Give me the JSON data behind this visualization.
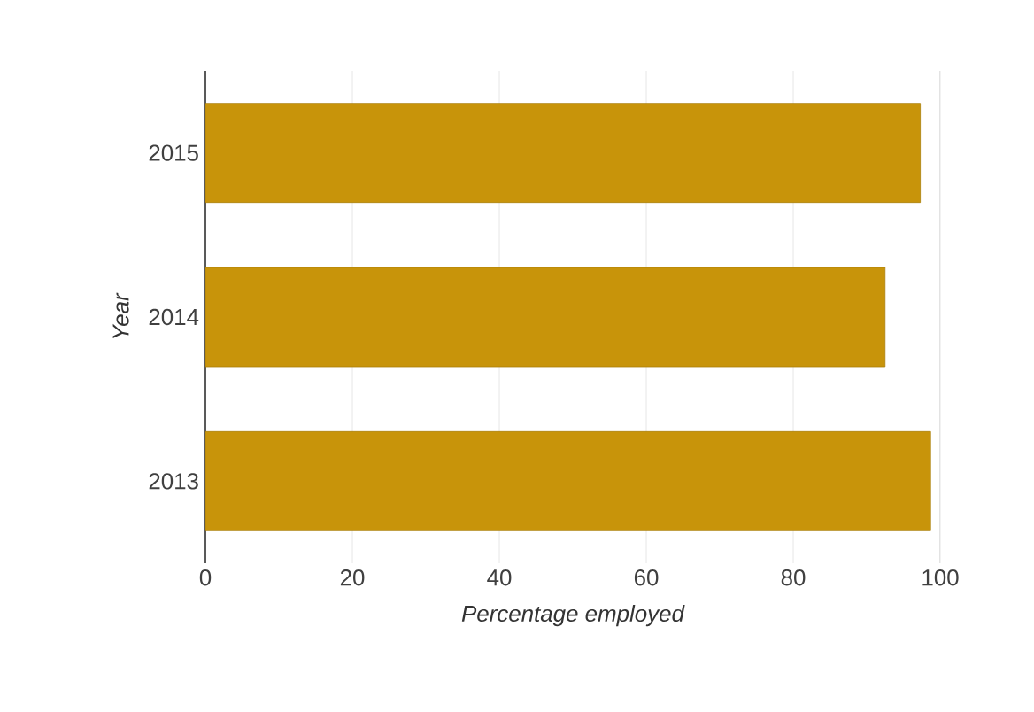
{
  "chart_data": {
    "type": "bar",
    "orientation": "horizontal",
    "xlabel": "Percentage employed",
    "ylabel": "Year",
    "categories": [
      "2015",
      "2014",
      "2013"
    ],
    "values": [
      97.3,
      92.5,
      98.7
    ],
    "color": "#c8940a",
    "xlim": [
      0,
      100
    ],
    "xticks": [
      0,
      20,
      40,
      60,
      80,
      100
    ],
    "grid": "x"
  }
}
